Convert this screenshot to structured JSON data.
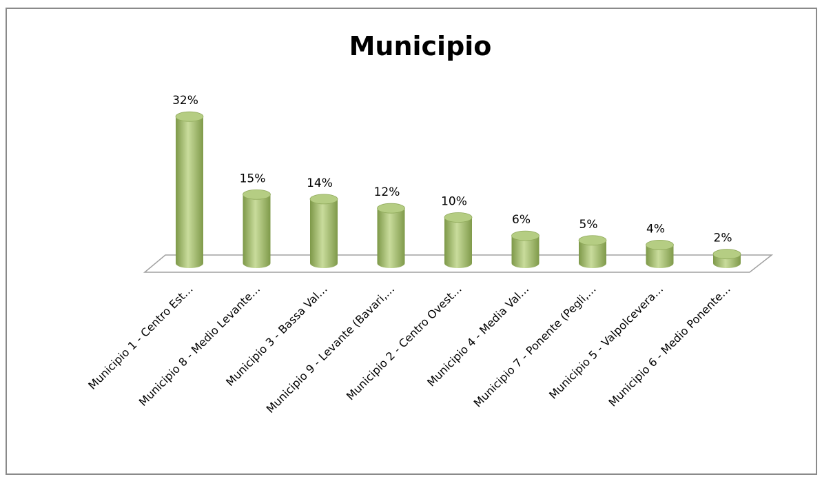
{
  "chart_data": {
    "type": "bar3d",
    "title": "Municipio",
    "categories": [
      "Municipio 1 - Centro Est…",
      "Municipio 8 - Medio Levante…",
      "Municipio 3 - Bassa Val…",
      "Municipio 9 - Levante (Bavari,…",
      "Municipio 2 - Centro Ovest…",
      "Municipio 4 - Media Val…",
      "Municipio 7 - Ponente (Pegli,…",
      "Municipio 5 - Valpolcevera…",
      "Municipio 6 - Medio Ponente…"
    ],
    "values": [
      32,
      15,
      14,
      12,
      10,
      6,
      5,
      4,
      2
    ],
    "value_labels": [
      "32%",
      "15%",
      "14%",
      "12%",
      "10%",
      "6%",
      "5%",
      "4%",
      "2%"
    ],
    "color": "#9bbb59"
  }
}
